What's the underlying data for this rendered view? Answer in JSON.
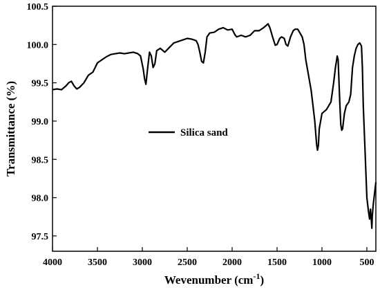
{
  "chart_data": {
    "type": "line",
    "xlabel": "Wevenumber (cm",
    "xlabel_sup": "-1",
    "xlabel_close": ")",
    "ylabel": "Transmittance (%)",
    "xlim": [
      4000,
      400
    ],
    "ylim": [
      97.3,
      100.5
    ],
    "x_reversed": true,
    "grid": false,
    "legend_position": "center-left",
    "x_ticks": [
      4000,
      3500,
      3000,
      2500,
      2000,
      1500,
      1000,
      500
    ],
    "x_tick_labels": [
      "4000",
      "3500",
      "3000",
      "2500",
      "2000",
      "1500",
      "1000",
      "500"
    ],
    "y_ticks": [
      97.5,
      98.0,
      98.5,
      99.0,
      99.5,
      100.0,
      100.5
    ],
    "y_tick_labels": [
      "97.5",
      "98.0",
      "98.5",
      "99.0",
      "99.5",
      "100.0",
      "100.5"
    ],
    "series": [
      {
        "name": "Silica sand",
        "color": "#000000",
        "x": [
          4000,
          3950,
          3900,
          3850,
          3820,
          3790,
          3760,
          3730,
          3700,
          3650,
          3600,
          3550,
          3500,
          3450,
          3400,
          3350,
          3300,
          3250,
          3200,
          3150,
          3100,
          3050,
          3020,
          2990,
          2975,
          2960,
          2940,
          2920,
          2900,
          2880,
          2860,
          2840,
          2800,
          2750,
          2700,
          2650,
          2600,
          2550,
          2500,
          2450,
          2400,
          2380,
          2360,
          2340,
          2320,
          2300,
          2280,
          2250,
          2200,
          2150,
          2100,
          2050,
          2000,
          1970,
          1950,
          1900,
          1850,
          1800,
          1750,
          1700,
          1650,
          1620,
          1600,
          1580,
          1550,
          1520,
          1500,
          1470,
          1450,
          1420,
          1400,
          1380,
          1350,
          1320,
          1300,
          1270,
          1250,
          1220,
          1200,
          1180,
          1150,
          1120,
          1100,
          1080,
          1060,
          1050,
          1040,
          1030,
          1000,
          950,
          900,
          870,
          850,
          830,
          820,
          810,
          800,
          790,
          780,
          770,
          760,
          750,
          730,
          700,
          680,
          660,
          640,
          620,
          600,
          580,
          560,
          550,
          540,
          520,
          500,
          480,
          470,
          460,
          450,
          445,
          440,
          430,
          420,
          410,
          400
        ],
        "y": [
          99.41,
          99.42,
          99.41,
          99.46,
          99.5,
          99.52,
          99.46,
          99.42,
          99.44,
          99.5,
          99.6,
          99.64,
          99.76,
          99.8,
          99.84,
          99.87,
          99.88,
          99.89,
          99.88,
          99.89,
          99.9,
          99.88,
          99.85,
          99.68,
          99.55,
          99.48,
          99.7,
          99.9,
          99.85,
          99.7,
          99.75,
          99.92,
          99.95,
          99.9,
          99.96,
          100.02,
          100.04,
          100.06,
          100.08,
          100.07,
          100.05,
          100.0,
          99.9,
          99.78,
          99.76,
          99.9,
          100.1,
          100.15,
          100.16,
          100.2,
          100.22,
          100.19,
          100.2,
          100.13,
          100.1,
          100.12,
          100.1,
          100.12,
          100.18,
          100.18,
          100.22,
          100.25,
          100.27,
          100.22,
          100.1,
          99.99,
          100.0,
          100.08,
          100.1,
          100.08,
          100.0,
          99.98,
          100.1,
          100.18,
          100.2,
          100.2,
          100.16,
          100.1,
          100.0,
          99.8,
          99.6,
          99.4,
          99.2,
          99.0,
          98.7,
          98.62,
          98.68,
          98.9,
          99.1,
          99.15,
          99.25,
          99.5,
          99.7,
          99.85,
          99.8,
          99.5,
          99.2,
          98.95,
          98.88,
          98.9,
          99.0,
          99.1,
          99.2,
          99.25,
          99.35,
          99.7,
          99.85,
          99.95,
          100.0,
          100.02,
          99.98,
          99.7,
          99.2,
          98.6,
          98.0,
          97.8,
          97.72,
          97.85,
          97.7,
          97.6,
          97.75,
          97.9,
          98.0,
          98.1,
          98.2
        ]
      }
    ]
  }
}
